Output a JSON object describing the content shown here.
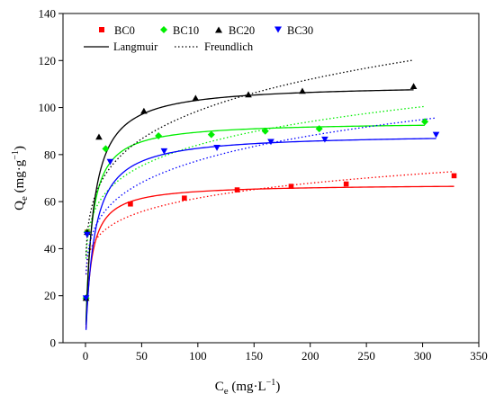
{
  "chart_data": {
    "type": "scatter",
    "xlabel": {
      "main": "C",
      "sub": "e",
      "unit_open": " (mg·L",
      "sup": "−1",
      "unit_close": ")"
    },
    "ylabel": {
      "main": "Q",
      "sub": "e",
      "unit_open": " (mg·g",
      "sup": "−1",
      "unit_close": ")"
    },
    "xlim": [
      -20,
      350
    ],
    "ylim": [
      0,
      140
    ],
    "xticks": [
      0,
      50,
      100,
      150,
      200,
      250,
      300,
      350
    ],
    "yticks": [
      0,
      20,
      40,
      60,
      80,
      100,
      120,
      140
    ],
    "grid": false,
    "legend_placement": "top-left",
    "series": [
      {
        "name": "BC0",
        "color": "#ff0000",
        "marker": "square",
        "x": [
          0.5,
          1.5,
          40,
          88,
          135,
          183,
          232,
          328
        ],
        "y": [
          19,
          47,
          59,
          61.5,
          65,
          66.5,
          67.5,
          71
        ],
        "langmuir": {
          "qm": 67.5,
          "kl": 0.2
        },
        "freundlich": {
          "kf": 32,
          "n": 7.05
        }
      },
      {
        "name": "BC10",
        "color": "#00ee00",
        "marker": "diamond",
        "x": [
          0.5,
          1.5,
          18,
          65,
          112,
          160,
          208,
          302
        ],
        "y": [
          19,
          47,
          82.5,
          88,
          88.5,
          90,
          91,
          94
        ],
        "langmuir": {
          "qm": 94,
          "kl": 0.2
        },
        "freundlich": {
          "kf": 40,
          "n": 6.2
        }
      },
      {
        "name": "BC20",
        "color": "#000000",
        "marker": "triangle-up",
        "x": [
          0.5,
          1.5,
          12,
          52,
          98,
          145,
          193,
          292
        ],
        "y": [
          19,
          47,
          87.5,
          98.5,
          104,
          105.5,
          107,
          109
        ],
        "langmuir": {
          "qm": 110,
          "kl": 0.15
        },
        "freundlich": {
          "kf": 42,
          "n": 5.4
        }
      },
      {
        "name": "BC30",
        "color": "#0000ff",
        "marker": "triangle-down",
        "x": [
          0.5,
          1.5,
          22,
          70,
          117,
          165,
          213,
          312
        ],
        "y": [
          19,
          46,
          77,
          81.5,
          83,
          85.5,
          86.5,
          88.5
        ],
        "langmuir": {
          "qm": 89,
          "kl": 0.13
        },
        "freundlich": {
          "kf": 33,
          "n": 5.4
        }
      }
    ],
    "fit_legend": [
      {
        "name": "Langmuir",
        "style": "solid"
      },
      {
        "name": "Freundlich",
        "style": "dotted"
      }
    ]
  }
}
